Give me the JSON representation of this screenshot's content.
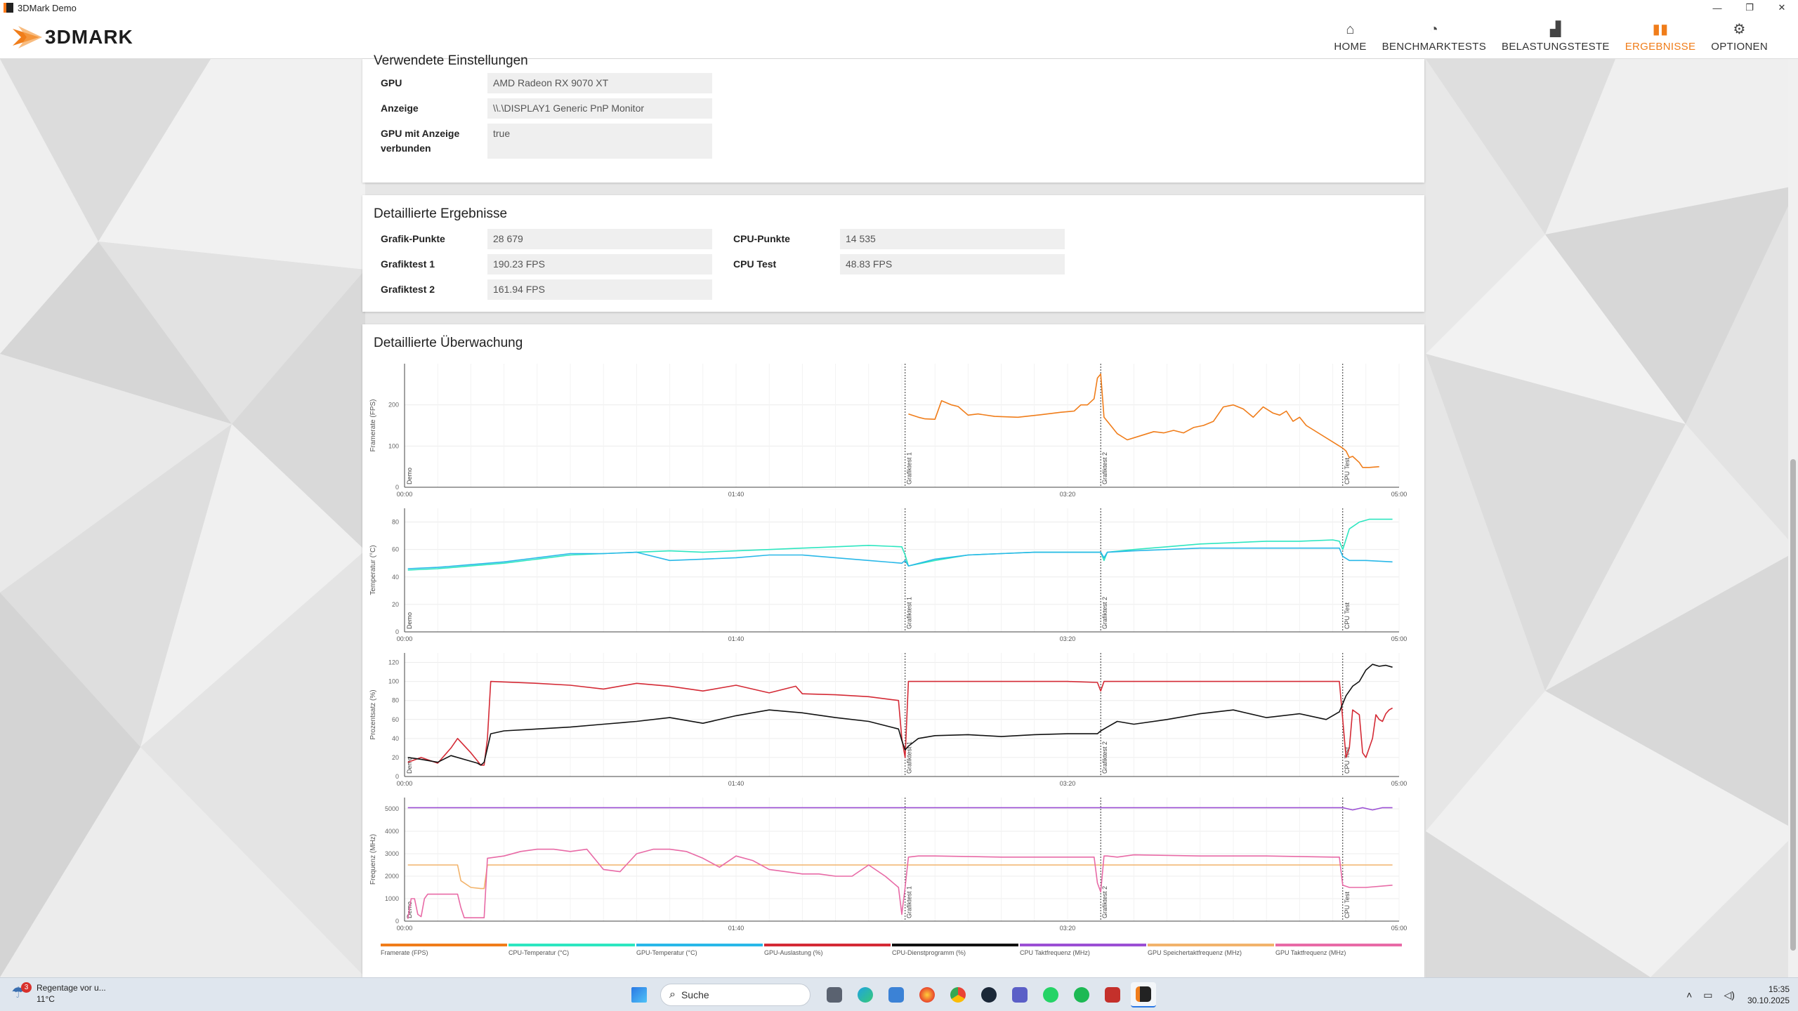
{
  "window": {
    "title": "3DMark Demo",
    "minimize": "—",
    "restore": "❐",
    "close": "✕"
  },
  "header": {
    "logo_text": "3DMARK",
    "nav": [
      {
        "label": "HOME",
        "icon": "⌂"
      },
      {
        "label": "BENCHMARKTESTS",
        "icon": "◔"
      },
      {
        "label": "BELASTUNGSTESTE",
        "icon": "▟"
      },
      {
        "label": "ERGEBNISSE",
        "icon": "▮▮"
      },
      {
        "label": "OPTIONEN",
        "icon": "⚙"
      }
    ]
  },
  "settings": {
    "heading": "Verwendete Einstellungen",
    "rows": [
      {
        "label": "GPU",
        "value": "AMD Radeon RX 9070 XT"
      },
      {
        "label": "Anzeige",
        "value": "\\\\.\\DISPLAY1 Generic PnP Monitor"
      },
      {
        "label": "GPU mit Anzeige verbunden",
        "value": "true"
      }
    ]
  },
  "results": {
    "heading": "Detaillierte Ergebnisse",
    "left": [
      {
        "label": "Grafik-Punkte",
        "value": "28 679"
      },
      {
        "label": "Grafiktest 1",
        "value": "190.23 FPS"
      },
      {
        "label": "Grafiktest 2",
        "value": "161.94 FPS"
      }
    ],
    "right": [
      {
        "label": "CPU-Punkte",
        "value": "14 535"
      },
      {
        "label": "CPU Test",
        "value": "48.83 FPS"
      }
    ]
  },
  "monitor": {
    "heading": "Detaillierte Überwachung",
    "legend": [
      {
        "label": "Framerate (FPS)",
        "color": "#f07d1a"
      },
      {
        "label": "CPU-Temperatur (°C)",
        "color": "#2de6c0"
      },
      {
        "label": "GPU-Temperatur (°C)",
        "color": "#29b8e8"
      },
      {
        "label": "GPU-Auslastung (%)",
        "color": "#d42a35"
      },
      {
        "label": "CPU-Dienstprogramm (%)",
        "color": "#111111"
      },
      {
        "label": "CPU Taktfrequenz (MHz)",
        "color": "#9b4fd4"
      },
      {
        "label": "GPU Speichertaktfrequenz (MHz)",
        "color": "#f2b36b"
      },
      {
        "label": "GPU Taktfrequenz (MHz)",
        "color": "#e86aa6"
      }
    ]
  },
  "chart_data": {
    "type": "line",
    "x_ticks": [
      "00:00",
      "01:40",
      "03:20",
      "05:00"
    ],
    "x_range_seconds": [
      0,
      300
    ],
    "phase_markers": [
      {
        "label": "Demo",
        "t": 0
      },
      {
        "label": "Grafiktest 1",
        "t": 151
      },
      {
        "label": "Grafiktest 2",
        "t": 210
      },
      {
        "label": "CPU Test",
        "t": 283
      }
    ],
    "panels": [
      {
        "ylabel": "Framerate (FPS)",
        "ylim": [
          0,
          300
        ],
        "yticks": [
          0,
          100,
          200
        ],
        "series": [
          {
            "name": "Framerate (FPS)",
            "x": [
              152,
              155,
              157,
              160,
              162,
              165,
              167,
              170,
              173,
              178,
              185,
              192,
              198,
              202,
              204,
              206,
              208,
              209,
              210,
              211,
              213,
              215,
              218,
              222,
              226,
              229,
              232,
              235,
              238,
              241,
              244,
              247,
              250,
              253,
              256,
              259,
              262,
              264,
              266,
              268,
              270,
              272,
              283,
              284,
              285,
              286,
              288,
              289,
              291,
              294
            ],
            "values": [
              178,
              170,
              166,
              165,
              210,
              200,
              196,
              175,
              178,
              172,
              170,
              176,
              182,
              185,
              200,
              200,
              215,
              265,
              275,
              170,
              150,
              130,
              115,
              125,
              135,
              132,
              138,
              132,
              145,
              150,
              160,
              195,
              200,
              190,
              170,
              195,
              180,
              175,
              185,
              160,
              170,
              150,
              95,
              88,
              72,
              75,
              60,
              48,
              48,
              50
            ]
          }
        ]
      },
      {
        "ylabel": "Temperatur (°C)",
        "ylim": [
          0,
          90
        ],
        "yticks": [
          0,
          20,
          40,
          60,
          80
        ],
        "series": [
          {
            "name": "CPU-Temperatur (°C)",
            "x": [
              1,
              10,
              20,
              30,
              40,
              50,
              60,
              70,
              80,
              90,
              100,
              110,
              120,
              130,
              140,
              150,
              151,
              152,
              160,
              170,
              180,
              190,
              200,
              210,
              211,
              212,
              220,
              230,
              240,
              250,
              260,
              270,
              280,
              282,
              283,
              285,
              288,
              291,
              294,
              297,
              298
            ],
            "values": [
              45,
              46,
              48,
              50,
              53,
              56,
              57,
              58,
              59,
              58,
              59,
              60,
              61,
              62,
              63,
              62,
              56,
              48,
              52,
              56,
              57,
              58,
              58,
              58,
              52,
              58,
              60,
              62,
              64,
              65,
              66,
              66,
              67,
              66,
              60,
              75,
              80,
              82,
              82,
              82,
              82
            ]
          },
          {
            "name": "GPU-Temperatur (°C)",
            "x": [
              1,
              10,
              20,
              30,
              40,
              50,
              60,
              70,
              80,
              90,
              100,
              110,
              120,
              130,
              140,
              150,
              151,
              152,
              160,
              170,
              180,
              190,
              200,
              210,
              211,
              212,
              220,
              230,
              240,
              250,
              260,
              270,
              280,
              282,
              283,
              285,
              290,
              298
            ],
            "values": [
              46,
              47,
              49,
              51,
              54,
              57,
              57,
              58,
              52,
              53,
              54,
              56,
              56,
              54,
              52,
              50,
              52,
              48,
              53,
              56,
              57,
              58,
              58,
              58,
              54,
              58,
              59,
              60,
              61,
              61,
              61,
              61,
              61,
              61,
              55,
              52,
              52,
              51
            ]
          }
        ]
      },
      {
        "ylabel": "Prozentsatz (%)",
        "ylim": [
          0,
          130
        ],
        "yticks": [
          0,
          20,
          40,
          60,
          80,
          100,
          120
        ],
        "series": [
          {
            "name": "GPU-Auslastung (%)",
            "x": [
              1,
              5,
              10,
              14,
              16,
              20,
              23,
              24,
              25,
              26,
              40,
              50,
              60,
              70,
              80,
              90,
              100,
              110,
              118,
              120,
              130,
              140,
              149,
              150,
              151,
              152,
              153,
              160,
              180,
              200,
              209,
              210,
              211,
              212,
              213,
              240,
              270,
              282,
              283,
              284,
              285,
              286,
              288,
              289,
              290,
              292,
              293,
              294,
              295,
              296,
              297,
              298
            ],
            "values": [
              15,
              20,
              14,
              30,
              40,
              25,
              12,
              12,
              40,
              100,
              98,
              96,
              92,
              98,
              95,
              90,
              96,
              88,
              95,
              87,
              86,
              84,
              80,
              40,
              20,
              100,
              100,
              100,
              100,
              100,
              99,
              90,
              100,
              100,
              100,
              100,
              100,
              100,
              60,
              20,
              30,
              70,
              65,
              25,
              20,
              40,
              65,
              60,
              58,
              66,
              70,
              72
            ]
          },
          {
            "name": "CPU-Dienstprogramm (%)",
            "x": [
              1,
              5,
              10,
              14,
              18,
              22,
              23,
              24,
              25,
              26,
              30,
              40,
              50,
              60,
              70,
              80,
              90,
              100,
              110,
              120,
              130,
              140,
              149,
              150,
              151,
              152,
              155,
              160,
              170,
              180,
              190,
              200,
              209,
              210,
              212,
              215,
              220,
              230,
              240,
              250,
              260,
              270,
              278,
              282,
              284,
              286,
              288,
              290,
              292,
              294,
              296,
              298
            ],
            "values": [
              20,
              18,
              15,
              22,
              18,
              14,
              12,
              15,
              30,
              45,
              48,
              50,
              52,
              55,
              58,
              62,
              56,
              64,
              70,
              67,
              62,
              58,
              50,
              38,
              28,
              32,
              40,
              43,
              44,
              42,
              44,
              45,
              45,
              48,
              52,
              58,
              55,
              60,
              66,
              70,
              62,
              66,
              60,
              68,
              85,
              95,
              100,
              112,
              118,
              116,
              117,
              115
            ]
          }
        ]
      },
      {
        "ylabel": "Frequenz (MHz)",
        "ylim": [
          0,
          5500
        ],
        "yticks": [
          0,
          1000,
          2000,
          3000,
          4000,
          5000
        ],
        "series": [
          {
            "name": "CPU Taktfrequenz (MHz)",
            "x": [
              1,
              50,
              100,
              150,
              200,
              250,
              283,
              286,
              289,
              292,
              295,
              298
            ],
            "values": [
              5050,
              5050,
              5050,
              5050,
              5050,
              5050,
              5050,
              4950,
              5050,
              4950,
              5050,
              5050
            ]
          },
          {
            "name": "GPU Speichertaktfrequenz (MHz)",
            "x": [
              1,
              16,
              17,
              20,
              23,
              24,
              25,
              150,
              200,
              250,
              298
            ],
            "values": [
              2500,
              2500,
              1800,
              1500,
              1450,
              1450,
              2500,
              2500,
              2500,
              2500,
              2500
            ]
          },
          {
            "name": "GPU Taktfrequenz (MHz)",
            "x": [
              1,
              2,
              3,
              4,
              5,
              6,
              7,
              16,
              17,
              18,
              19,
              20,
              21,
              22,
              23,
              24,
              25,
              30,
              35,
              40,
              45,
              50,
              55,
              60,
              65,
              70,
              75,
              80,
              85,
              90,
              95,
              100,
              105,
              110,
              115,
              120,
              125,
              130,
              135,
              140,
              145,
              149,
              150,
              151,
              152,
              155,
              160,
              180,
              200,
              208,
              209,
              210,
              211,
              212,
              215,
              220,
              240,
              260,
              280,
              282,
              283,
              285,
              290,
              298
            ],
            "values": [
              100,
              1000,
              1000,
              300,
              200,
              1000,
              1200,
              1200,
              600,
              150,
              150,
              150,
              150,
              150,
              150,
              150,
              2800,
              2900,
              3100,
              3200,
              3200,
              3100,
              3200,
              2300,
              2200,
              3000,
              3200,
              3200,
              3100,
              2800,
              2400,
              2900,
              2700,
              2300,
              2200,
              2100,
              2100,
              2000,
              2000,
              2500,
              2000,
              1500,
              300,
              1500,
              2850,
              2900,
              2900,
              2850,
              2850,
              2850,
              1700,
              1300,
              2900,
              2900,
              2850,
              2950,
              2900,
              2900,
              2850,
              2850,
              1600,
              1500,
              1500,
              1600
            ]
          }
        ]
      }
    ]
  },
  "taskbar": {
    "weather_title": "Regentage vor u...",
    "weather_temp": "11°C",
    "weather_badge": "3",
    "search_placeholder": "Suche",
    "time": "15:35",
    "date": "30.10.2025"
  }
}
